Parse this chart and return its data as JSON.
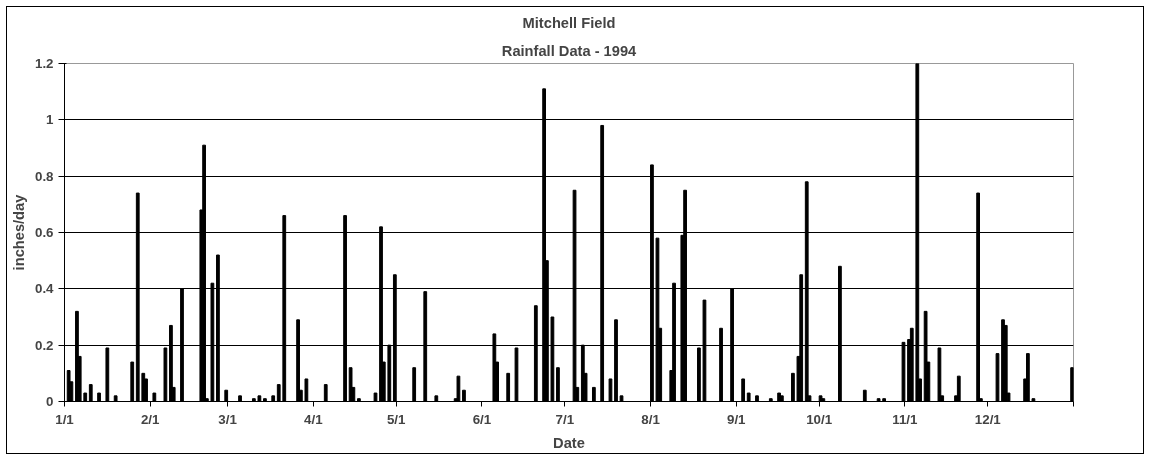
{
  "chart_data": {
    "type": "bar",
    "title": "Mitchell Field",
    "subtitle": "Rainfall Data - 1994",
    "xlabel": "Date",
    "ylabel": "inches/day",
    "x": [
      "1994-01-02",
      "1994-01-03",
      "1994-01-05",
      "1994-01-06",
      "1994-01-08",
      "1994-01-10",
      "1994-01-13",
      "1994-01-16",
      "1994-01-19",
      "1994-01-25",
      "1994-01-27",
      "1994-01-29",
      "1994-01-30",
      "1994-02-02",
      "1994-02-06",
      "1994-02-08",
      "1994-02-09",
      "1994-02-12",
      "1994-02-19",
      "1994-02-20",
      "1994-02-21",
      "1994-02-23",
      "1994-02-25",
      "1994-02-28",
      "1994-03-05",
      "1994-03-10",
      "1994-03-12",
      "1994-03-14",
      "1994-03-17",
      "1994-03-19",
      "1994-03-21",
      "1994-03-26",
      "1994-03-27",
      "1994-03-29",
      "1994-04-05",
      "1994-04-12",
      "1994-04-14",
      "1994-04-15",
      "1994-04-17",
      "1994-04-23",
      "1994-04-25",
      "1994-04-26",
      "1994-04-28",
      "1994-04-30",
      "1994-05-07",
      "1994-05-11",
      "1994-05-15",
      "1994-05-22",
      "1994-05-23",
      "1994-05-25",
      "1994-06-05",
      "1994-06-06",
      "1994-06-10",
      "1994-06-13",
      "1994-06-20",
      "1994-06-23",
      "1994-06-24",
      "1994-06-26",
      "1994-06-28",
      "1994-07-04",
      "1994-07-05",
      "1994-07-07",
      "1994-07-08",
      "1994-07-11",
      "1994-07-14",
      "1994-07-17",
      "1994-07-19",
      "1994-07-21",
      "1994-08-01",
      "1994-08-03",
      "1994-08-04",
      "1994-08-08",
      "1994-08-09",
      "1994-08-12",
      "1994-08-13",
      "1994-08-18",
      "1994-08-20",
      "1994-08-26",
      "1994-08-30",
      "1994-09-03",
      "1994-09-05",
      "1994-09-08",
      "1994-09-13",
      "1994-09-16",
      "1994-09-17",
      "1994-09-21",
      "1994-09-23",
      "1994-09-24",
      "1994-09-26",
      "1994-09-27",
      "1994-10-01",
      "1994-10-02",
      "1994-10-08",
      "1994-10-17",
      "1994-10-22",
      "1994-10-24",
      "1994-10-31",
      "1994-11-02",
      "1994-11-03",
      "1994-11-05",
      "1994-11-06",
      "1994-11-08",
      "1994-11-09",
      "1994-11-13",
      "1994-11-14",
      "1994-11-19",
      "1994-11-20",
      "1994-11-27",
      "1994-11-28",
      "1994-12-04",
      "1994-12-06",
      "1994-12-07",
      "1994-12-08",
      "1994-12-14",
      "1994-12-15",
      "1994-12-17",
      "1994-12-31"
    ],
    "values": [
      0.11,
      0.07,
      0.32,
      0.16,
      0.03,
      0.06,
      0.03,
      0.19,
      0.02,
      0.14,
      0.74,
      0.1,
      0.08,
      0.03,
      0.19,
      0.27,
      0.05,
      0.4,
      0.68,
      0.91,
      0.01,
      0.42,
      0.52,
      0.04,
      0.02,
      0.01,
      0.02,
      0.01,
      0.02,
      0.06,
      0.66,
      0.29,
      0.04,
      0.08,
      0.06,
      0.66,
      0.12,
      0.05,
      0.01,
      0.03,
      0.62,
      0.14,
      0.2,
      0.45,
      0.12,
      0.39,
      0.02,
      0.01,
      0.09,
      0.04,
      0.24,
      0.14,
      0.1,
      0.19,
      0.34,
      1.11,
      0.5,
      0.3,
      0.12,
      0.75,
      0.05,
      0.2,
      0.1,
      0.05,
      0.98,
      0.08,
      0.29,
      0.02,
      0.84,
      0.58,
      0.26,
      0.11,
      0.42,
      0.59,
      0.75,
      0.19,
      0.36,
      0.26,
      0.4,
      0.08,
      0.03,
      0.02,
      0.01,
      0.03,
      0.02,
      0.1,
      0.16,
      0.45,
      0.78,
      0.02,
      0.02,
      0.01,
      0.48,
      0.04,
      0.01,
      0.01,
      0.21,
      0.22,
      0.26,
      1.2,
      0.08,
      0.32,
      0.14,
      0.19,
      0.02,
      0.02,
      0.09,
      0.74,
      0.01,
      0.17,
      0.29,
      0.27,
      0.03,
      0.08,
      0.17,
      0.01,
      0.12
    ],
    "color": "#000000",
    "xlim": [
      "1994-01-01",
      "1995-01-01"
    ],
    "xticks": [
      {
        "value": "1994-01-01",
        "label": "1/1"
      },
      {
        "value": "1994-02-01",
        "label": "2/1"
      },
      {
        "value": "1994-03-01",
        "label": "3/1"
      },
      {
        "value": "1994-04-01",
        "label": "4/1"
      },
      {
        "value": "1994-05-01",
        "label": "5/1"
      },
      {
        "value": "1994-06-01",
        "label": "6/1"
      },
      {
        "value": "1994-07-01",
        "label": "7/1"
      },
      {
        "value": "1994-08-01",
        "label": "8/1"
      },
      {
        "value": "1994-09-01",
        "label": "9/1"
      },
      {
        "value": "1994-10-01",
        "label": "10/1"
      },
      {
        "value": "1994-11-01",
        "label": "11/1"
      },
      {
        "value": "1994-12-01",
        "label": "12/1"
      },
      {
        "value": "1995-01-01",
        "label": null
      }
    ],
    "ylim": [
      0,
      1.2
    ],
    "yticks": [
      0,
      0.2,
      0.4,
      0.6,
      0.8,
      1,
      1.2
    ],
    "grid": "y"
  }
}
